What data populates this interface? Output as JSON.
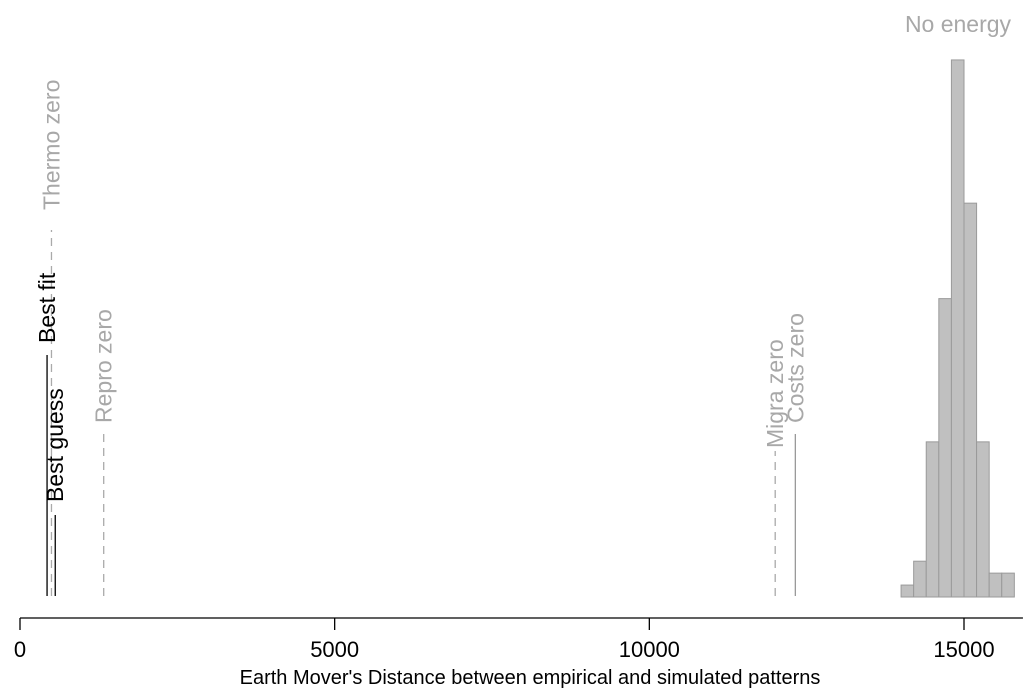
{
  "chart_data": {
    "type": "bar",
    "xlabel": "Earth Mover's Distance between empirical and simulated patterns",
    "xlim": [
      0,
      16000
    ],
    "xticks": [
      0,
      5000,
      10000,
      15000
    ],
    "histogram": {
      "label": "No energy",
      "bin_width": 200,
      "bins": [
        {
          "x0": 14000,
          "count": 1
        },
        {
          "x0": 14200,
          "count": 3
        },
        {
          "x0": 14400,
          "count": 13
        },
        {
          "x0": 14600,
          "count": 25
        },
        {
          "x0": 14800,
          "count": 45
        },
        {
          "x0": 15000,
          "count": 33
        },
        {
          "x0": 15200,
          "count": 13
        },
        {
          "x0": 15400,
          "count": 2
        },
        {
          "x0": 15600,
          "count": 2
        }
      ],
      "ylim": [
        0,
        46
      ]
    },
    "reference_lines": [
      {
        "label": "Thermo zero",
        "x": 500,
        "style": "dashed",
        "color": "#aaaaaa"
      },
      {
        "label": "Best fit",
        "x": 430,
        "style": "solid",
        "color": "#000000"
      },
      {
        "label": "Best guess",
        "x": 560,
        "style": "solid",
        "color": "#000000"
      },
      {
        "label": "Repro zero",
        "x": 1330,
        "style": "dashed",
        "color": "#aaaaaa"
      },
      {
        "label": "Migra zero",
        "x": 12000,
        "style": "dashed",
        "color": "#aaaaaa"
      },
      {
        "label": "Costs zero",
        "x": 12320,
        "style": "solid",
        "color": "#999999"
      }
    ],
    "colors": {
      "bar_fill": "#c0c0c0",
      "bar_stroke": "#9a9a9a",
      "axis": "#000000",
      "gray_text": "#a8a8a8"
    }
  }
}
